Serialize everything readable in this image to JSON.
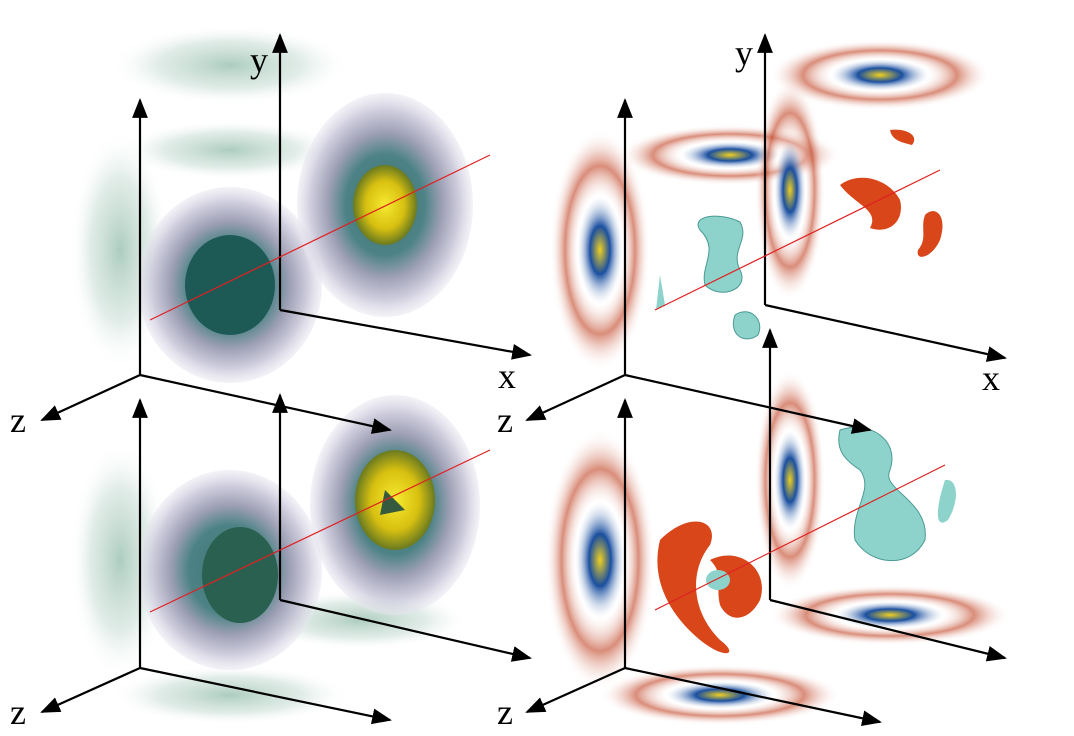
{
  "labels": [
    "y",
    "y",
    "x",
    "x",
    "z",
    "z",
    "z",
    "z"
  ]
}
